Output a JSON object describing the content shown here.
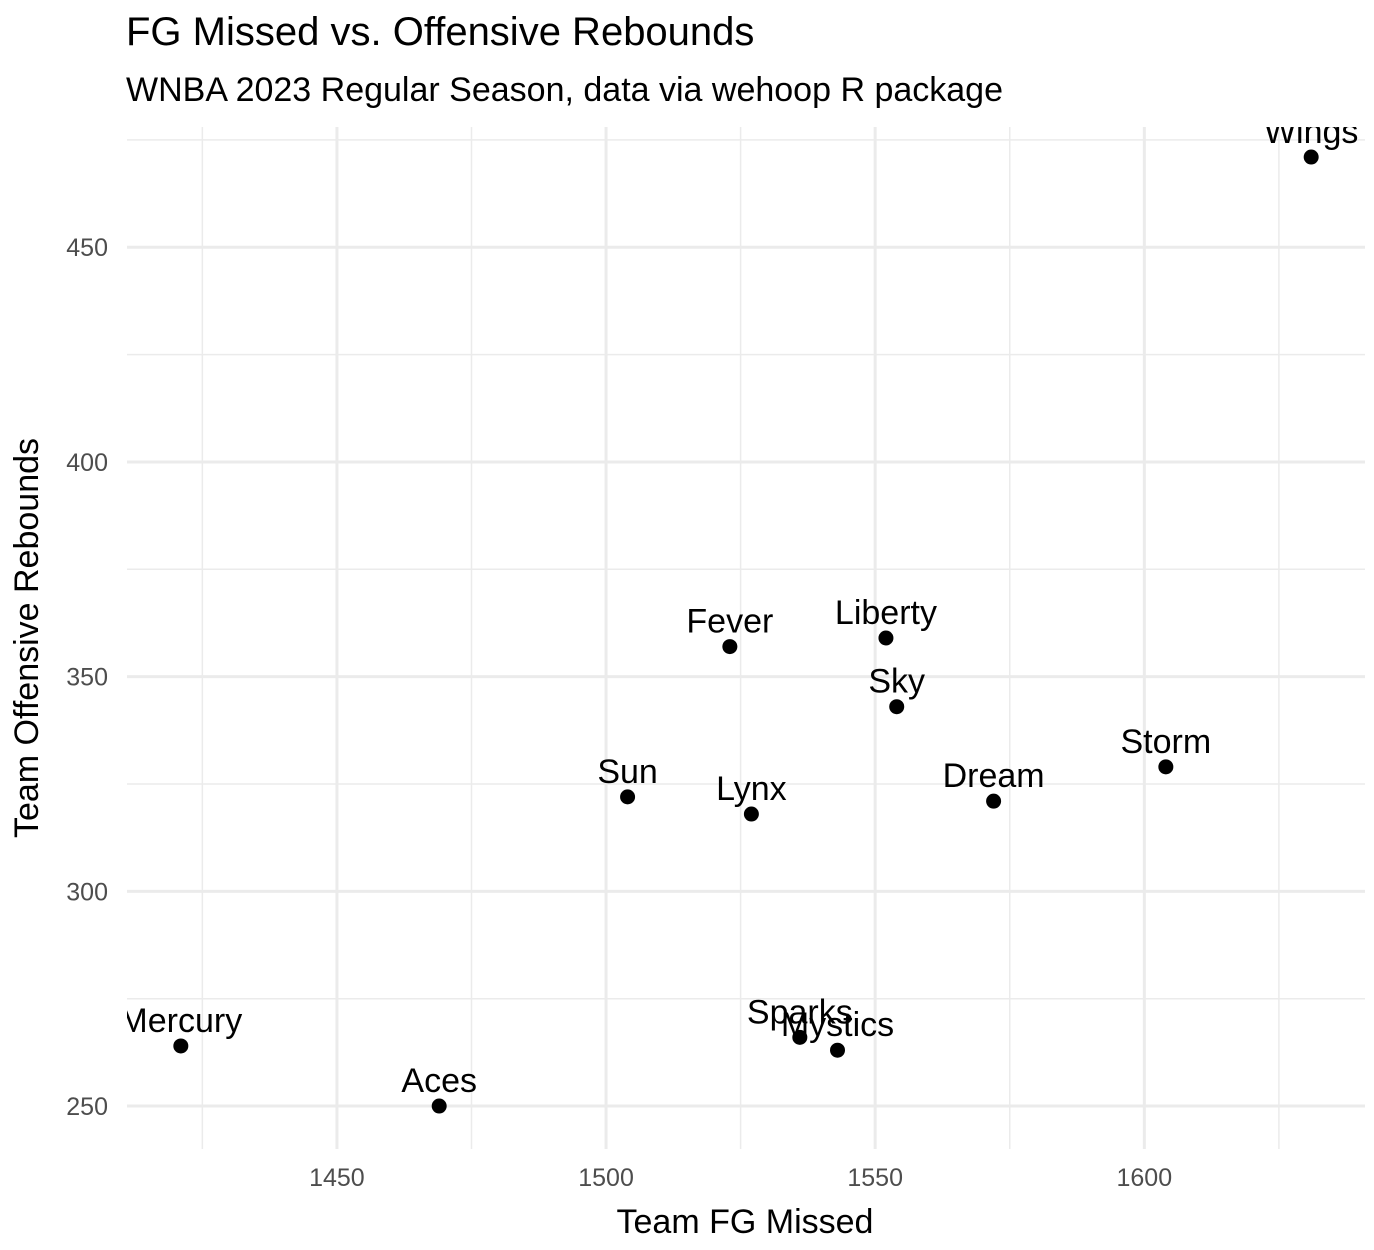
{
  "chart_data": {
    "type": "scatter",
    "title": "FG Missed vs. Offensive Rebounds",
    "subtitle": "WNBA 2023 Regular Season, data via wehoop R package",
    "xlabel": "Team FG Missed",
    "ylabel": "Team Offensive Rebounds",
    "xlim": [
      1411,
      1641
    ],
    "ylim": [
      240,
      478
    ],
    "x_ticks": [
      1450,
      1500,
      1550,
      1600
    ],
    "y_ticks": [
      250,
      300,
      350,
      400,
      450
    ],
    "x_tick_labels": [
      "1450",
      "1500",
      "1550",
      "1600"
    ],
    "y_tick_labels": [
      "250",
      "300",
      "350",
      "400",
      "450"
    ],
    "grid": true,
    "points": [
      {
        "label": "Wings",
        "x": 1631,
        "y": 471
      },
      {
        "label": "Liberty",
        "x": 1552,
        "y": 359
      },
      {
        "label": "Fever",
        "x": 1523,
        "y": 357
      },
      {
        "label": "Sky",
        "x": 1554,
        "y": 343
      },
      {
        "label": "Storm",
        "x": 1604,
        "y": 329
      },
      {
        "label": "Sun",
        "x": 1504,
        "y": 322
      },
      {
        "label": "Dream",
        "x": 1572,
        "y": 321
      },
      {
        "label": "Lynx",
        "x": 1527,
        "y": 318
      },
      {
        "label": "Sparks",
        "x": 1536,
        "y": 266
      },
      {
        "label": "Mercury",
        "x": 1421,
        "y": 264
      },
      {
        "label": "Mystics",
        "x": 1543,
        "y": 263
      },
      {
        "label": "Aces",
        "x": 1469,
        "y": 250
      }
    ]
  }
}
